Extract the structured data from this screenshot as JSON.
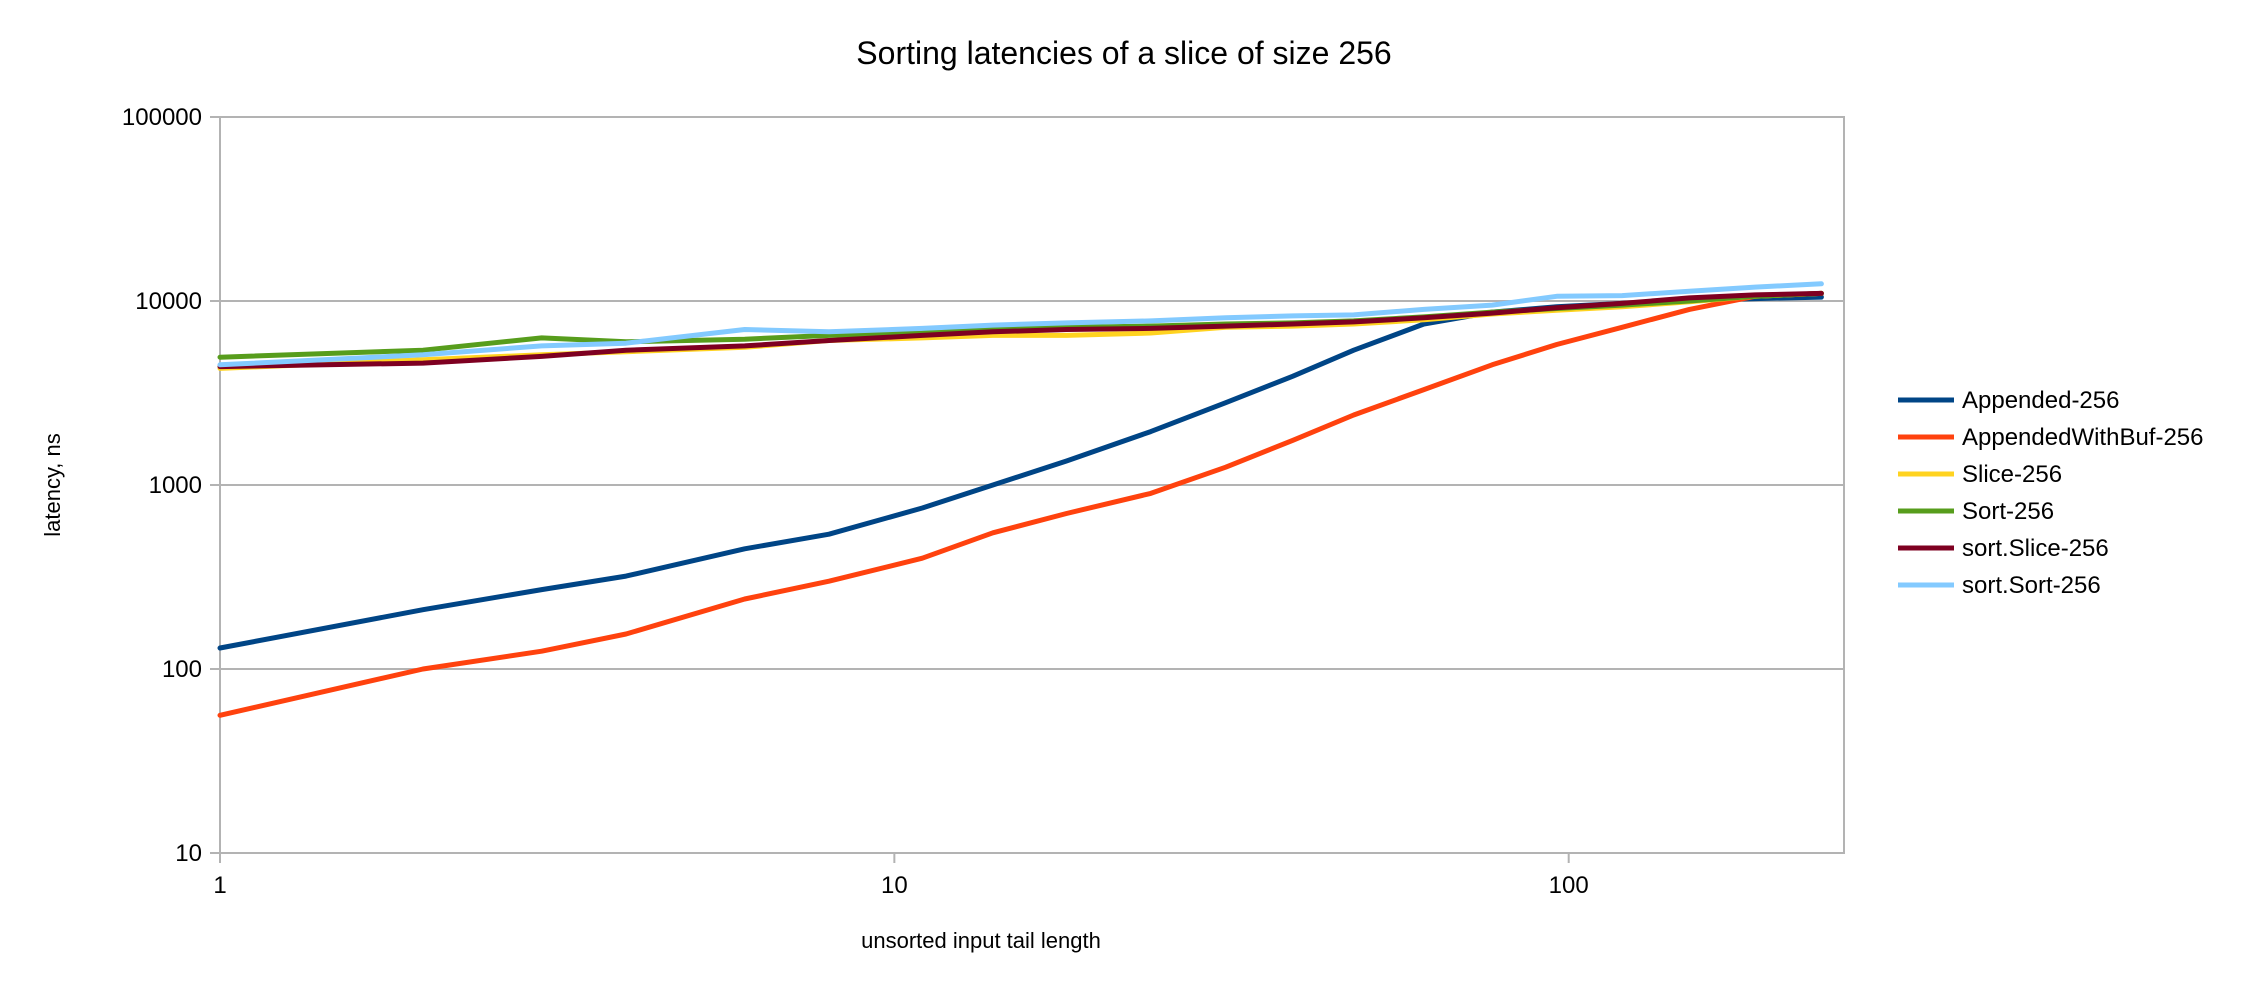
{
  "chart_data": {
    "type": "line",
    "title": "Sorting latencies of a slice of size 256",
    "xlabel": "unsorted input tail length",
    "ylabel": "latency, ns",
    "x_scale": "log",
    "y_scale": "log",
    "xlim": [
      1,
      256
    ],
    "ylim": [
      10,
      100000
    ],
    "x_ticks": [
      1,
      10,
      100
    ],
    "x_tick_labels": [
      "1",
      "10",
      "100"
    ],
    "y_ticks": [
      10,
      100,
      1000,
      10000,
      100000
    ],
    "y_tick_labels": [
      "10",
      "100",
      "1000",
      "10000",
      "100000"
    ],
    "grid": "horizontal major gridlines",
    "legend_position": "right",
    "x": [
      1,
      2,
      3,
      4,
      6,
      8,
      11,
      14,
      18,
      24,
      31,
      39,
      48,
      61,
      77,
      96,
      120,
      151,
      189,
      237
    ],
    "series": [
      {
        "name": "Appended-256",
        "color": "#004586",
        "values": [
          130,
          210,
          270,
          320,
          450,
          540,
          750,
          1000,
          1350,
          1950,
          2800,
          3900,
          5400,
          7500,
          8700,
          9300,
          9700,
          10100,
          10300,
          10500
        ]
      },
      {
        "name": "AppendedWithBuf-256",
        "color": "#ff420e",
        "values": [
          56,
          100,
          125,
          155,
          240,
          300,
          400,
          550,
          700,
          900,
          1250,
          1750,
          2400,
          3300,
          4500,
          5800,
          7200,
          9000,
          10600,
          11000
        ]
      },
      {
        "name": "Slice-256",
        "color": "#ffd320",
        "values": [
          4300,
          4800,
          5100,
          5300,
          5600,
          6100,
          6300,
          6500,
          6500,
          6700,
          7200,
          7300,
          7500,
          7900,
          8500,
          8900,
          9300,
          9900,
          10600,
          11000
        ]
      },
      {
        "name": "Sort-256",
        "color": "#579d1c",
        "values": [
          4950,
          5400,
          6300,
          6000,
          6200,
          6500,
          6700,
          7200,
          7200,
          7300,
          7500,
          7600,
          7800,
          8200,
          8700,
          9100,
          9500,
          10000,
          10600,
          11000
        ]
      },
      {
        "name": "sort.Slice-256",
        "color": "#7e0021",
        "values": [
          4400,
          4600,
          5000,
          5400,
          5700,
          6100,
          6500,
          6800,
          7000,
          7100,
          7300,
          7500,
          7700,
          8100,
          8600,
          9200,
          9700,
          10400,
          10800,
          11000
        ]
      },
      {
        "name": "sort.Sort-256",
        "color": "#83caff",
        "values": [
          4500,
          5100,
          5700,
          5900,
          7000,
          6800,
          7100,
          7400,
          7600,
          7800,
          8100,
          8300,
          8400,
          9000,
          9500,
          10600,
          10700,
          11300,
          11900,
          12400
        ]
      }
    ]
  }
}
